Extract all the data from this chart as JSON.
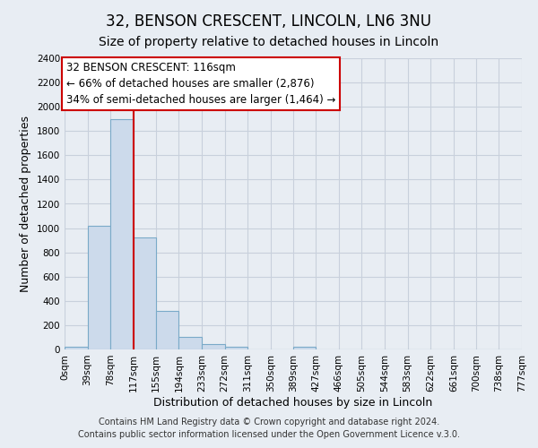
{
  "title": "32, BENSON CRESCENT, LINCOLN, LN6 3NU",
  "subtitle": "Size of property relative to detached houses in Lincoln",
  "xlabel": "Distribution of detached houses by size in Lincoln",
  "ylabel": "Number of detached properties",
  "bin_edges": [
    0,
    39,
    78,
    117,
    155,
    194,
    233,
    272,
    311,
    350,
    389,
    427,
    466,
    505,
    544,
    583,
    622,
    661,
    700,
    738,
    777
  ],
  "bin_counts": [
    20,
    1020,
    1900,
    920,
    315,
    105,
    45,
    25,
    0,
    0,
    20,
    0,
    0,
    0,
    0,
    0,
    0,
    0,
    0,
    0
  ],
  "bar_color": "#ccdaeb",
  "bar_edge_color": "#7aaac8",
  "property_line_x": 117,
  "property_line_color": "#cc0000",
  "annotation_line1": "32 BENSON CRESCENT: 116sqm",
  "annotation_line2": "← 66% of detached houses are smaller (2,876)",
  "annotation_line3": "34% of semi-detached houses are larger (1,464) →",
  "annotation_box_color": "#ffffff",
  "annotation_box_edge_color": "#cc0000",
  "ylim": [
    0,
    2400
  ],
  "yticks": [
    0,
    200,
    400,
    600,
    800,
    1000,
    1200,
    1400,
    1600,
    1800,
    2000,
    2200,
    2400
  ],
  "xtick_labels": [
    "0sqm",
    "39sqm",
    "78sqm",
    "117sqm",
    "155sqm",
    "194sqm",
    "233sqm",
    "272sqm",
    "311sqm",
    "350sqm",
    "389sqm",
    "427sqm",
    "466sqm",
    "505sqm",
    "544sqm",
    "583sqm",
    "622sqm",
    "661sqm",
    "700sqm",
    "738sqm",
    "777sqm"
  ],
  "footer_line1": "Contains HM Land Registry data © Crown copyright and database right 2024.",
  "footer_line2": "Contains public sector information licensed under the Open Government Licence v.3.0.",
  "bg_color": "#e8edf3",
  "plot_bg_color": "#e8edf3",
  "grid_color": "#c8d0dc",
  "title_fontsize": 12,
  "subtitle_fontsize": 10,
  "xlabel_fontsize": 9,
  "ylabel_fontsize": 9,
  "tick_fontsize": 7.5,
  "annotation_fontsize": 8.5,
  "footer_fontsize": 7
}
